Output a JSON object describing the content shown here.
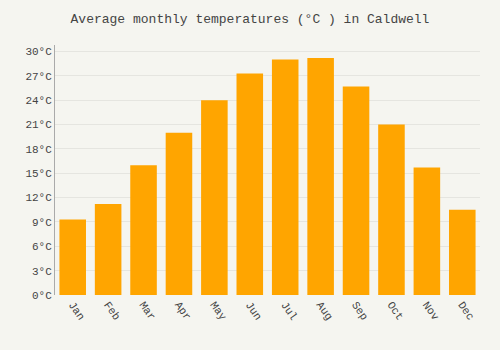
{
  "chart_data": {
    "type": "bar",
    "title": "Average monthly temperatures (°C ) in Caldwell",
    "categories": [
      "Jan",
      "Feb",
      "Mar",
      "Apr",
      "May",
      "Jun",
      "Jul",
      "Aug",
      "Sep",
      "Oct",
      "Nov",
      "Dec"
    ],
    "values": [
      9.3,
      11.2,
      16.0,
      20.0,
      24.0,
      27.3,
      29.0,
      29.2,
      25.7,
      21.0,
      15.7,
      10.5
    ],
    "color": "#FFA500",
    "ylim": [
      0,
      30.8
    ],
    "yticks": [
      {
        "value": 0,
        "label": "0°C"
      },
      {
        "value": 3,
        "label": "3°C"
      },
      {
        "value": 6,
        "label": "6°C"
      },
      {
        "value": 9,
        "label": "9°C"
      },
      {
        "value": 12,
        "label": "12°C"
      },
      {
        "value": 15,
        "label": "15°C"
      },
      {
        "value": 18,
        "label": "18°C"
      },
      {
        "value": 21,
        "label": "21°C"
      },
      {
        "value": 24,
        "label": "24°C"
      },
      {
        "value": 27,
        "label": "27°C"
      },
      {
        "value": 30,
        "label": "30°C"
      }
    ],
    "grid": true
  }
}
